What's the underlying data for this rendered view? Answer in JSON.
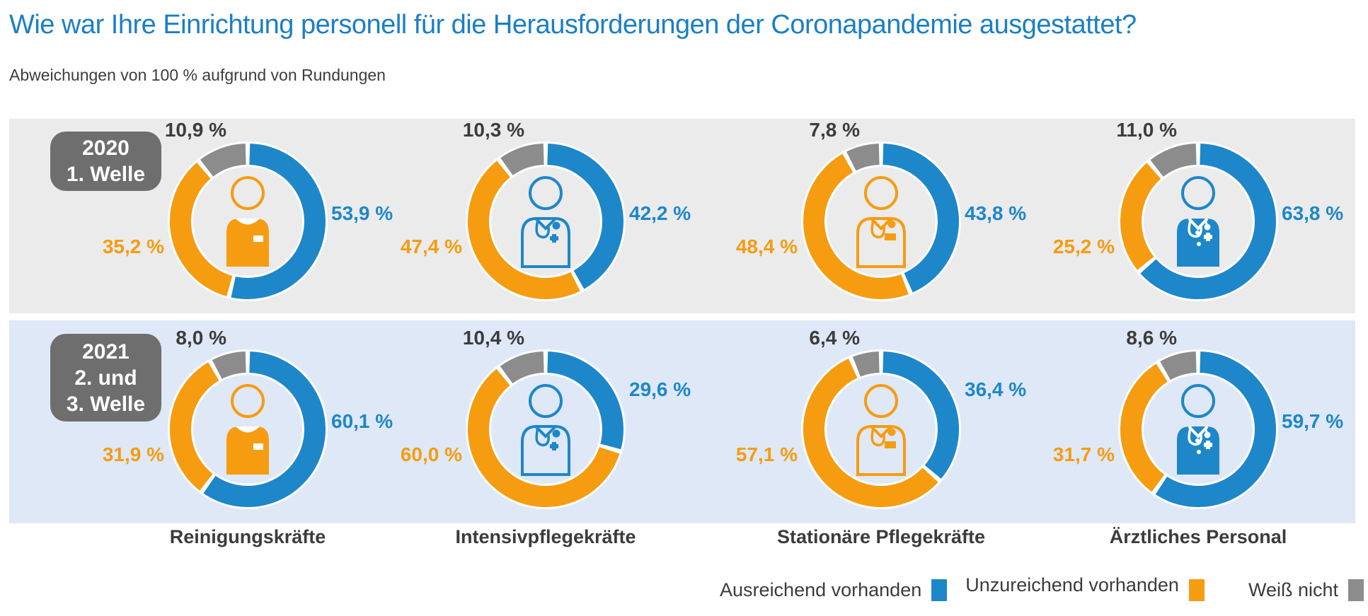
{
  "title": "Wie war Ihre Einrichtung personell für die Herausforderungen der Coronapandemie ausgestattet?",
  "subtitle": "Abweichungen von 100 % aufgrund von Rundungen",
  "colors": {
    "sufficient": "#1d87c9",
    "insufficient": "#f59c11",
    "unknown": "#8c8c8c",
    "badge_bg": "#6e6e6e",
    "row_2020_bg": "#ebebeb",
    "row_2021_bg": "#dfe8f6",
    "title_text": "#1a7fc5",
    "body_text": "#3c3c3c"
  },
  "legend": [
    {
      "label": "Ausreichend vorhanden",
      "color_key": "sufficient"
    },
    {
      "label": "Unzureichend vorhanden",
      "color_key": "insufficient"
    },
    {
      "label": "Weiß nicht",
      "color_key": "unknown"
    }
  ],
  "chart_data": {
    "type": "pie",
    "variant": "donut",
    "unit": "%",
    "value_format": "german-decimal-comma",
    "legend_position": "bottom-right",
    "series_labels": [
      "Ausreichend vorhanden",
      "Unzureichend vorhanden",
      "Weiß nicht"
    ],
    "categories": [
      "Reinigungskräfte",
      "Intensivpflegekräfte",
      "Stationäre Pflegekräfte",
      "Ärztliches Personal"
    ],
    "category_icons": [
      "cleaning-staff-icon",
      "icu-nurse-icon",
      "ward-nurse-icon",
      "doctor-icon"
    ],
    "rows": [
      {
        "badge_lines": [
          "2020",
          "1. Welle"
        ],
        "row_label": "2020 1. Welle",
        "donuts": [
          {
            "category": "Reinigungskräfte",
            "sufficient": 53.9,
            "insufficient": 35.2,
            "unknown": 10.9
          },
          {
            "category": "Intensivpflegekräfte",
            "sufficient": 42.2,
            "insufficient": 47.4,
            "unknown": 10.3
          },
          {
            "category": "Stationäre Pflegekräfte",
            "sufficient": 43.8,
            "insufficient": 48.4,
            "unknown": 7.8
          },
          {
            "category": "Ärztliches Personal",
            "sufficient": 63.8,
            "insufficient": 25.2,
            "unknown": 11.0
          }
        ]
      },
      {
        "badge_lines": [
          "2021",
          "2. und",
          "3. Welle"
        ],
        "row_label": "2021 2. und 3. Welle",
        "donuts": [
          {
            "category": "Reinigungskräfte",
            "sufficient": 60.1,
            "insufficient": 31.9,
            "unknown": 8.0
          },
          {
            "category": "Intensivpflegekräfte",
            "sufficient": 29.6,
            "insufficient": 60.0,
            "unknown": 10.4
          },
          {
            "category": "Stationäre Pflegekräfte",
            "sufficient": 36.4,
            "insufficient": 57.1,
            "unknown": 6.4
          },
          {
            "category": "Ärztliches Personal",
            "sufficient": 59.7,
            "insufficient": 31.7,
            "unknown": 8.6
          }
        ]
      }
    ]
  }
}
